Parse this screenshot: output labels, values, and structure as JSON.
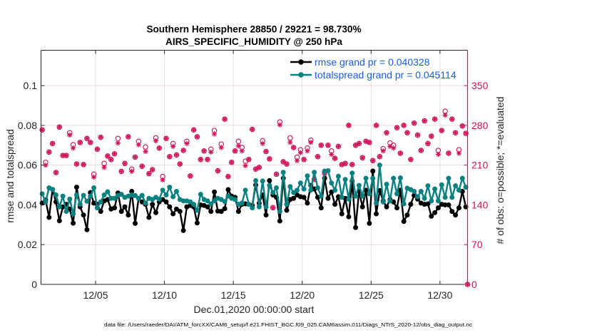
{
  "title": {
    "line1": "Southern Hemisphere 28850 / 29221 = 98.730%",
    "line2": "AIRS_SPECIFIC_HUMIDITY @ 250 hPa"
  },
  "footer": "data file: /Users/raeder/DAI/ATM_forcXX/CAM6_setup/f.e21.FHIST_BGC.f09_025.CAM6assim.011/Diags_NTrS_2020-12/obs_diag_output.nc",
  "colors": {
    "rmse": "#000000",
    "totalspread": "#0b8080",
    "obs": "#d0125a",
    "legend_text": "#1a5de4",
    "grid_h": "#f3cbda",
    "grid_v": "#dadada",
    "axis": "#262626"
  },
  "chart_data": {
    "type": "line",
    "title": "Southern Hemisphere 28850 / 29221 = 98.730% / AIRS_SPECIFIC_HUMIDITY @ 250 hPa",
    "xlabel": "Dec.01,2020 00:00:00 start",
    "ylabel": "rmse and totalspread",
    "ylabel_right": "# of obs: o=possible; *=evaluated",
    "x_units": "days since Dec.01,2020 00:00:00",
    "xlim": [
      0.04,
      31
    ],
    "xticks": [
      {
        "value": 4,
        "label": "12/05"
      },
      {
        "value": 9,
        "label": "12/10"
      },
      {
        "value": 14,
        "label": "12/15"
      },
      {
        "value": 19,
        "label": "12/20"
      },
      {
        "value": 24,
        "label": "12/25"
      },
      {
        "value": 29,
        "label": "12/30"
      }
    ],
    "ylim": [
      0,
      0.1178
    ],
    "yticks": [
      {
        "value": 0,
        "label": "0"
      },
      {
        "value": 0.02,
        "label": "0.02"
      },
      {
        "value": 0.04,
        "label": "0.04"
      },
      {
        "value": 0.06,
        "label": "0.06"
      },
      {
        "value": 0.08,
        "label": "0.08"
      },
      {
        "value": 0.1,
        "label": "0.1"
      }
    ],
    "ylim_right": [
      0,
      412.3
    ],
    "yticks_right": [
      {
        "value": 0,
        "label": "0"
      },
      {
        "value": 70,
        "label": "70"
      },
      {
        "value": 140,
        "label": "140"
      },
      {
        "value": 210,
        "label": "210"
      },
      {
        "value": 280,
        "label": "280"
      },
      {
        "value": 350,
        "label": "350"
      }
    ],
    "grid": true,
    "legend": {
      "position": "top-right",
      "entries": [
        {
          "label": "rmse grand pr = 0.040328",
          "series": "rmse"
        },
        {
          "label": "totalspread grand pr = 0.045114",
          "series": "totalspread"
        }
      ]
    },
    "x": [
      0.125,
      0.375,
      0.625,
      0.875,
      1.125,
      1.375,
      1.625,
      1.875,
      2.125,
      2.375,
      2.625,
      2.875,
      3.125,
      3.375,
      3.625,
      3.875,
      4.125,
      4.375,
      4.625,
      4.875,
      5.125,
      5.375,
      5.625,
      5.875,
      6.125,
      6.375,
      6.625,
      6.875,
      7.125,
      7.375,
      7.625,
      7.875,
      8.125,
      8.375,
      8.625,
      8.875,
      9.125,
      9.375,
      9.625,
      9.875,
      10.125,
      10.375,
      10.625,
      10.875,
      11.125,
      11.375,
      11.625,
      11.875,
      12.125,
      12.375,
      12.625,
      12.875,
      13.125,
      13.375,
      13.625,
      13.875,
      14.125,
      14.375,
      14.625,
      14.875,
      15.125,
      15.375,
      15.625,
      15.875,
      16.125,
      16.375,
      16.625,
      16.875,
      17.125,
      17.375,
      17.625,
      17.875,
      18.125,
      18.375,
      18.625,
      18.875,
      19.125,
      19.375,
      19.625,
      19.875,
      20.125,
      20.375,
      20.625,
      20.875,
      21.125,
      21.375,
      21.625,
      21.875,
      22.125,
      22.375,
      22.625,
      22.875,
      23.125,
      23.375,
      23.625,
      23.875,
      24.125,
      24.375,
      24.625,
      24.875,
      25.125,
      25.375,
      25.625,
      25.875,
      26.125,
      26.375,
      26.625,
      26.875,
      27.125,
      27.375,
      27.625,
      27.875,
      28.125,
      28.375,
      28.625,
      28.875,
      29.125,
      29.375,
      29.625,
      29.875,
      30.125,
      30.375,
      30.625,
      30.875
    ],
    "series": [
      {
        "name": "rmse",
        "axis": "left",
        "style": "line-marker",
        "color_key": "rmse",
        "values": [
          0.0409,
          0.0425,
          0.0337,
          0.0478,
          0.0415,
          0.032,
          0.039,
          0.0403,
          0.0379,
          0.0308,
          0.0489,
          0.039,
          0.0349,
          0.0275,
          0.0462,
          0.0409,
          0.0403,
          0.0367,
          0.042,
          0.0427,
          0.0379,
          0.0385,
          0.046,
          0.0367,
          0.039,
          0.0349,
          0.0468,
          0.0307,
          0.0433,
          0.0415,
          0.0403,
          0.0337,
          0.0403,
          0.0361,
          0.0415,
          0.0427,
          0.0415,
          0.039,
          0.0355,
          0.0379,
          0.0367,
          0.0271,
          0.039,
          0.0397,
          0.039,
          0.0309,
          0.04,
          0.0397,
          0.039,
          0.0367,
          0.0465,
          0.0369,
          0.0367,
          0.0381,
          0.0477,
          0.0444,
          0.0438,
          0.0367,
          0.0403,
          0.0405,
          0.0403,
          0.0397,
          0.05,
          0.0409,
          0.045,
          0.0349,
          0.0522,
          0.045,
          0.0438,
          0.0319,
          0.0534,
          0.0373,
          0.0427,
          0.0433,
          0.045,
          0.0441,
          0.0438,
          0.0409,
          0.0498,
          0.048,
          0.0438,
          0.0385,
          0.0534,
          0.0433,
          0.0465,
          0.0403,
          0.0441,
          0.0355,
          0.0433,
          0.034,
          0.052,
          0.0286,
          0.0468,
          0.039,
          0.0474,
          0.0307,
          0.057,
          0.0355,
          0.0472,
          0.042,
          0.039,
          0.0427,
          0.0415,
          0.0385,
          0.0474,
          0.0317,
          0.0349,
          0.0403,
          0.0448,
          0.0429,
          0.0409,
          0.0403,
          0.0405,
          0.0343,
          0.0361,
          0.0385,
          0.0403,
          0.04,
          0.04,
          0.0367,
          0.0349,
          0.0385,
          0.0468,
          0.039
        ]
      },
      {
        "name": "totalspread",
        "axis": "left",
        "style": "line-marker",
        "color_key": "totalspread",
        "values": [
          0.0456,
          0.0415,
          0.0486,
          0.0477,
          0.045,
          0.039,
          0.0444,
          0.0367,
          0.0429,
          0.0355,
          0.045,
          0.0403,
          0.0448,
          0.0418,
          0.0444,
          0.0486,
          0.0385,
          0.0415,
          0.045,
          0.0466,
          0.0433,
          0.0433,
          0.0448,
          0.0453,
          0.0438,
          0.0444,
          0.045,
          0.0447,
          0.0433,
          0.0448,
          0.0409,
          0.0433,
          0.0427,
          0.0438,
          0.0429,
          0.0474,
          0.045,
          0.0489,
          0.0441,
          0.0468,
          0.0427,
          0.042,
          0.042,
          0.0415,
          0.0403,
          0.0373,
          0.0453,
          0.0427,
          0.042,
          0.0405,
          0.042,
          0.0433,
          0.0427,
          0.0417,
          0.0444,
          0.0433,
          0.0427,
          0.0403,
          0.0409,
          0.0474,
          0.0403,
          0.0385,
          0.0522,
          0.039,
          0.052,
          0.039,
          0.0498,
          0.0462,
          0.0486,
          0.0367,
          0.0564,
          0.0403,
          0.0492,
          0.0462,
          0.0474,
          0.051,
          0.048,
          0.0546,
          0.0474,
          0.0564,
          0.0486,
          0.0444,
          0.057,
          0.0572,
          0.051,
          0.0474,
          0.0544,
          0.0438,
          0.0528,
          0.0429,
          0.056,
          0.0444,
          0.0498,
          0.0444,
          0.0534,
          0.0456,
          0.0534,
          0.0409,
          0.06,
          0.0415,
          0.0504,
          0.042,
          0.0534,
          0.0456,
          0.0536,
          0.0405,
          0.0484,
          0.0477,
          0.0468,
          0.0441,
          0.0468,
          0.0433,
          0.0496,
          0.042,
          0.048,
          0.042,
          0.0501,
          0.0438,
          0.0534,
          0.0438,
          0.0496,
          0.0474,
          0.0534,
          0.0489
        ]
      },
      {
        "name": "obs possible",
        "axis": "right",
        "style": "marker-o",
        "color_key": "obs",
        "values": [
          272,
          215,
          233,
          248,
          197,
          277,
          227,
          227,
          267,
          246,
          212,
          250,
          211,
          257,
          250,
          194,
          238,
          259,
          213,
          226,
          220,
          230,
          257,
          199,
          213,
          260,
          203,
          224,
          252,
          208,
          242,
          195,
          202,
          258,
          240,
          190,
          257,
          225,
          248,
          228,
          212,
          236,
          252,
          191,
          272,
          260,
          220,
          235,
          220,
          238,
          271,
          200,
          247,
          291,
          190,
          215,
          235,
          252,
          241,
          217,
          220,
          273,
          203,
          206,
          253,
          234,
          221,
          135,
          194,
          286,
          216,
          212,
          258,
          241,
          224,
          237,
          220,
          240,
          254,
          185,
          225,
          245,
          197,
          245,
          235,
          222,
          243,
          211,
          213,
          280,
          211,
          245,
          248,
          223,
          252,
          250,
          218,
          280,
          225,
          239,
          267,
          249,
          245,
          276,
          231,
          280,
          267,
          220,
          284,
          263,
          236,
          288,
          248,
          261,
          291,
          236,
          271,
          305,
          231,
          291,
          267,
          237,
          279,
          266
        ]
      },
      {
        "name": "obs evaluated",
        "axis": "right",
        "style": "marker-asterisk",
        "color_key": "obs",
        "values": [
          272,
          210,
          233,
          248,
          197,
          277,
          227,
          227,
          263,
          240,
          212,
          250,
          211,
          257,
          250,
          189,
          238,
          259,
          206,
          226,
          220,
          230,
          249,
          199,
          213,
          260,
          199,
          224,
          246,
          208,
          234,
          195,
          202,
          253,
          240,
          184,
          257,
          225,
          243,
          228,
          212,
          236,
          248,
          191,
          272,
          260,
          220,
          235,
          220,
          233,
          265,
          200,
          241,
          291,
          190,
          215,
          235,
          244,
          235,
          209,
          220,
          273,
          203,
          206,
          248,
          234,
          221,
          135,
          194,
          281,
          216,
          212,
          250,
          241,
          218,
          232,
          220,
          235,
          250,
          185,
          225,
          245,
          194,
          245,
          229,
          222,
          243,
          211,
          213,
          280,
          211,
          245,
          248,
          223,
          252,
          250,
          218,
          280,
          225,
          235,
          267,
          243,
          240,
          276,
          231,
          280,
          267,
          220,
          284,
          263,
          236,
          288,
          248,
          261,
          291,
          229,
          271,
          298,
          231,
          291,
          267,
          231,
          279,
          266
        ]
      }
    ],
    "end_point": {
      "x": 31,
      "possible": 0,
      "evaluated": 0
    }
  }
}
